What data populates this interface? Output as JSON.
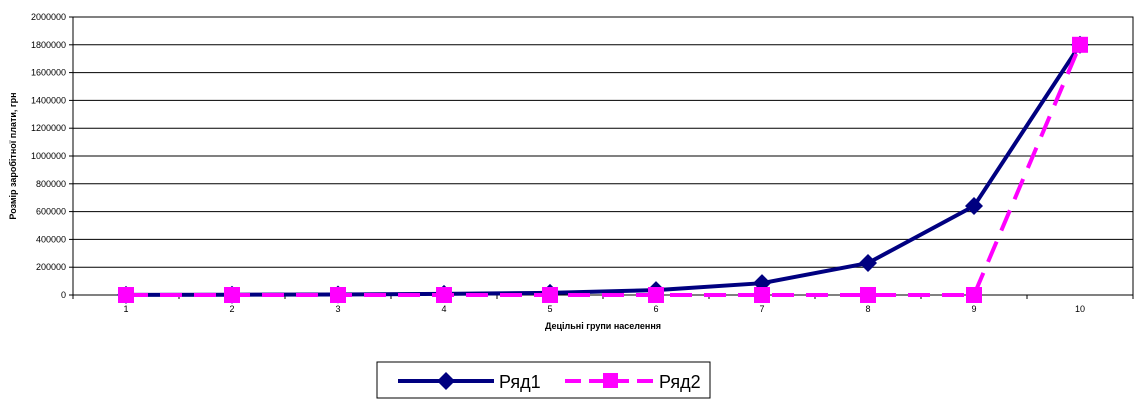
{
  "chart_data": {
    "type": "line",
    "title": "",
    "xlabel": "Децільні групи населення",
    "ylabel": "Розмір заробітної плати, грн",
    "categories": [
      "1",
      "2",
      "3",
      "4",
      "5",
      "6",
      "7",
      "8",
      "9",
      "10"
    ],
    "ylim": [
      0,
      2000000
    ],
    "yticks": [
      0,
      200000,
      400000,
      600000,
      800000,
      1000000,
      1200000,
      1400000,
      1600000,
      1800000,
      2000000
    ],
    "ytick_labels": [
      "0",
      "200000",
      "400000",
      "600000",
      "800000",
      "1000000",
      "1200000",
      "1400000",
      "1600000",
      "1800000",
      "2000000"
    ],
    "grid": "horizontal",
    "legend": "bottom",
    "series": [
      {
        "name": "Ряд1",
        "color": "#000080",
        "marker": "diamond",
        "dash": "solid",
        "values": [
          1000,
          2000,
          4000,
          8000,
          15000,
          35000,
          85000,
          230000,
          640000,
          1800000
        ]
      },
      {
        "name": "Ряд2",
        "color": "#ff00ff",
        "marker": "square",
        "dash": "dashed",
        "values": [
          0,
          0,
          0,
          0,
          0,
          0,
          0,
          0,
          0,
          1800000
        ]
      }
    ]
  }
}
